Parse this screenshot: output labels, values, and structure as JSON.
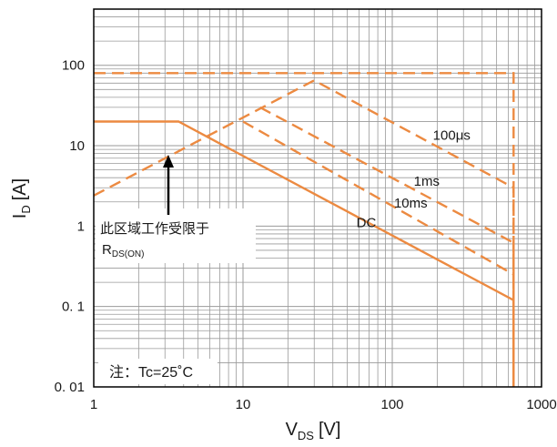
{
  "chart_data": {
    "type": "line",
    "xscale": "log",
    "yscale": "log",
    "xlim": [
      1,
      1000
    ],
    "ylim": [
      0.01,
      500
    ],
    "grid": true,
    "xlabel": "V",
    "xlabel_sub": "DS",
    "xlabel_unit": "[V]",
    "ylabel": "I",
    "ylabel_sub": "D",
    "ylabel_unit": "[A]",
    "xticks": [
      {
        "v": 1,
        "label": "1"
      },
      {
        "v": 10,
        "label": "10"
      },
      {
        "v": 100,
        "label": "100"
      },
      {
        "v": 1000,
        "label": "1000"
      }
    ],
    "yticks": [
      {
        "v": 0.01,
        "label": "0. 01"
      },
      {
        "v": 0.1,
        "label": "0. 1"
      },
      {
        "v": 1,
        "label": "1"
      },
      {
        "v": 10,
        "label": "10"
      },
      {
        "v": 100,
        "label": "100"
      }
    ],
    "series": [
      {
        "name": "DC",
        "style": "solid",
        "points": [
          [
            1,
            20
          ],
          [
            3.7,
            20
          ],
          [
            650,
            0.12
          ],
          [
            650,
            0.01
          ]
        ]
      },
      {
        "name": "10ms",
        "style": "dashed",
        "points": [
          [
            10,
            20
          ],
          [
            650,
            0.25
          ],
          [
            650,
            0.01
          ]
        ]
      },
      {
        "name": "1ms",
        "style": "dashed",
        "points": [
          [
            13,
            30
          ],
          [
            650,
            0.62
          ],
          [
            650,
            0.01
          ]
        ]
      },
      {
        "name": "100μs",
        "style": "dashed",
        "points": [
          [
            1,
            2.4
          ],
          [
            30,
            65
          ],
          [
            650,
            3
          ],
          [
            650,
            0.01
          ]
        ]
      },
      {
        "name": "",
        "style": "dashed",
        "points": [
          [
            1,
            80
          ],
          [
            650,
            80
          ],
          [
            650,
            0.01
          ]
        ]
      }
    ],
    "series_labels": [
      {
        "text": "100μs",
        "x": 250,
        "y": 13.5
      },
      {
        "text": "1ms",
        "x": 170,
        "y": 3.6
      },
      {
        "text": "10ms",
        "x": 133,
        "y": 1.95
      },
      {
        "text": "DC",
        "x": 67,
        "y": 1.1
      }
    ],
    "annotation": {
      "line1": "此区域工作受限于",
      "line2_main": "R",
      "line2_sub": "DS(ON)",
      "arrow_target": [
        3.5,
        8.5
      ]
    },
    "note": "注：Tc=25˚C",
    "colors": {
      "curve": "#ec8a41",
      "grid": "#9a9a9a",
      "axis": "#000000",
      "text": "#1a1a1a"
    }
  }
}
